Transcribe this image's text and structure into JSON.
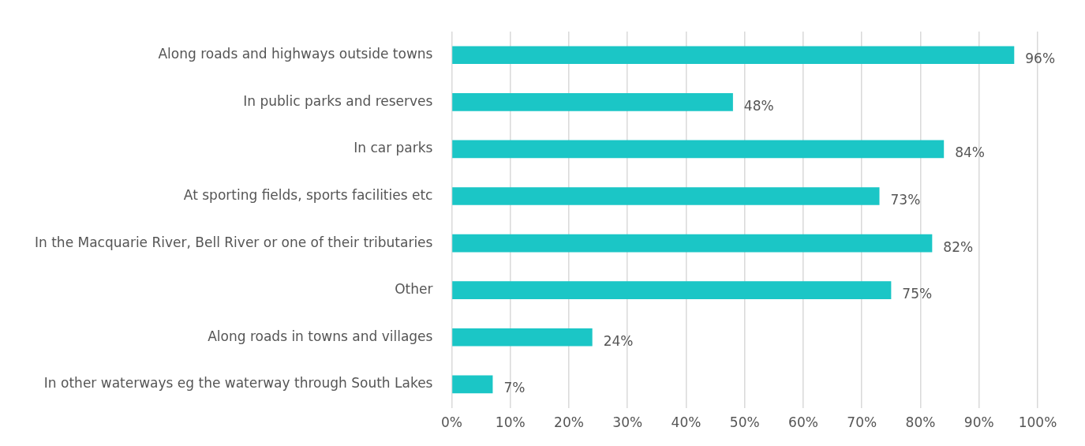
{
  "chart_data": {
    "type": "bar",
    "orientation": "horizontal",
    "categories": [
      "Along roads and highways outside towns",
      "In public parks and reserves",
      "In car parks",
      "At sporting fields, sports facilities etc",
      "In the Macquarie River, Bell River or one of their tributaries",
      "Other",
      "Along roads in towns and villages",
      "In other waterways eg the waterway through South Lakes"
    ],
    "values": [
      96,
      48,
      84,
      73,
      82,
      75,
      24,
      7
    ],
    "value_labels": [
      "96%",
      "48%",
      "84%",
      "73%",
      "82%",
      "75%",
      "24%",
      "7%"
    ],
    "color": "#1bc6c6",
    "xlim": [
      0,
      100
    ],
    "xticks": [
      {
        "value": 0,
        "label": "0%"
      },
      {
        "value": 10,
        "label": "10%"
      },
      {
        "value": 20,
        "label": "20%"
      },
      {
        "value": 30,
        "label": "30%"
      },
      {
        "value": 40,
        "label": "40%"
      },
      {
        "value": 50,
        "label": "50%"
      },
      {
        "value": 60,
        "label": "60%"
      },
      {
        "value": 70,
        "label": "70%"
      },
      {
        "value": 80,
        "label": "80%"
      },
      {
        "value": 90,
        "label": "90%"
      },
      {
        "value": 100,
        "label": "100%"
      }
    ],
    "grid": "x"
  }
}
